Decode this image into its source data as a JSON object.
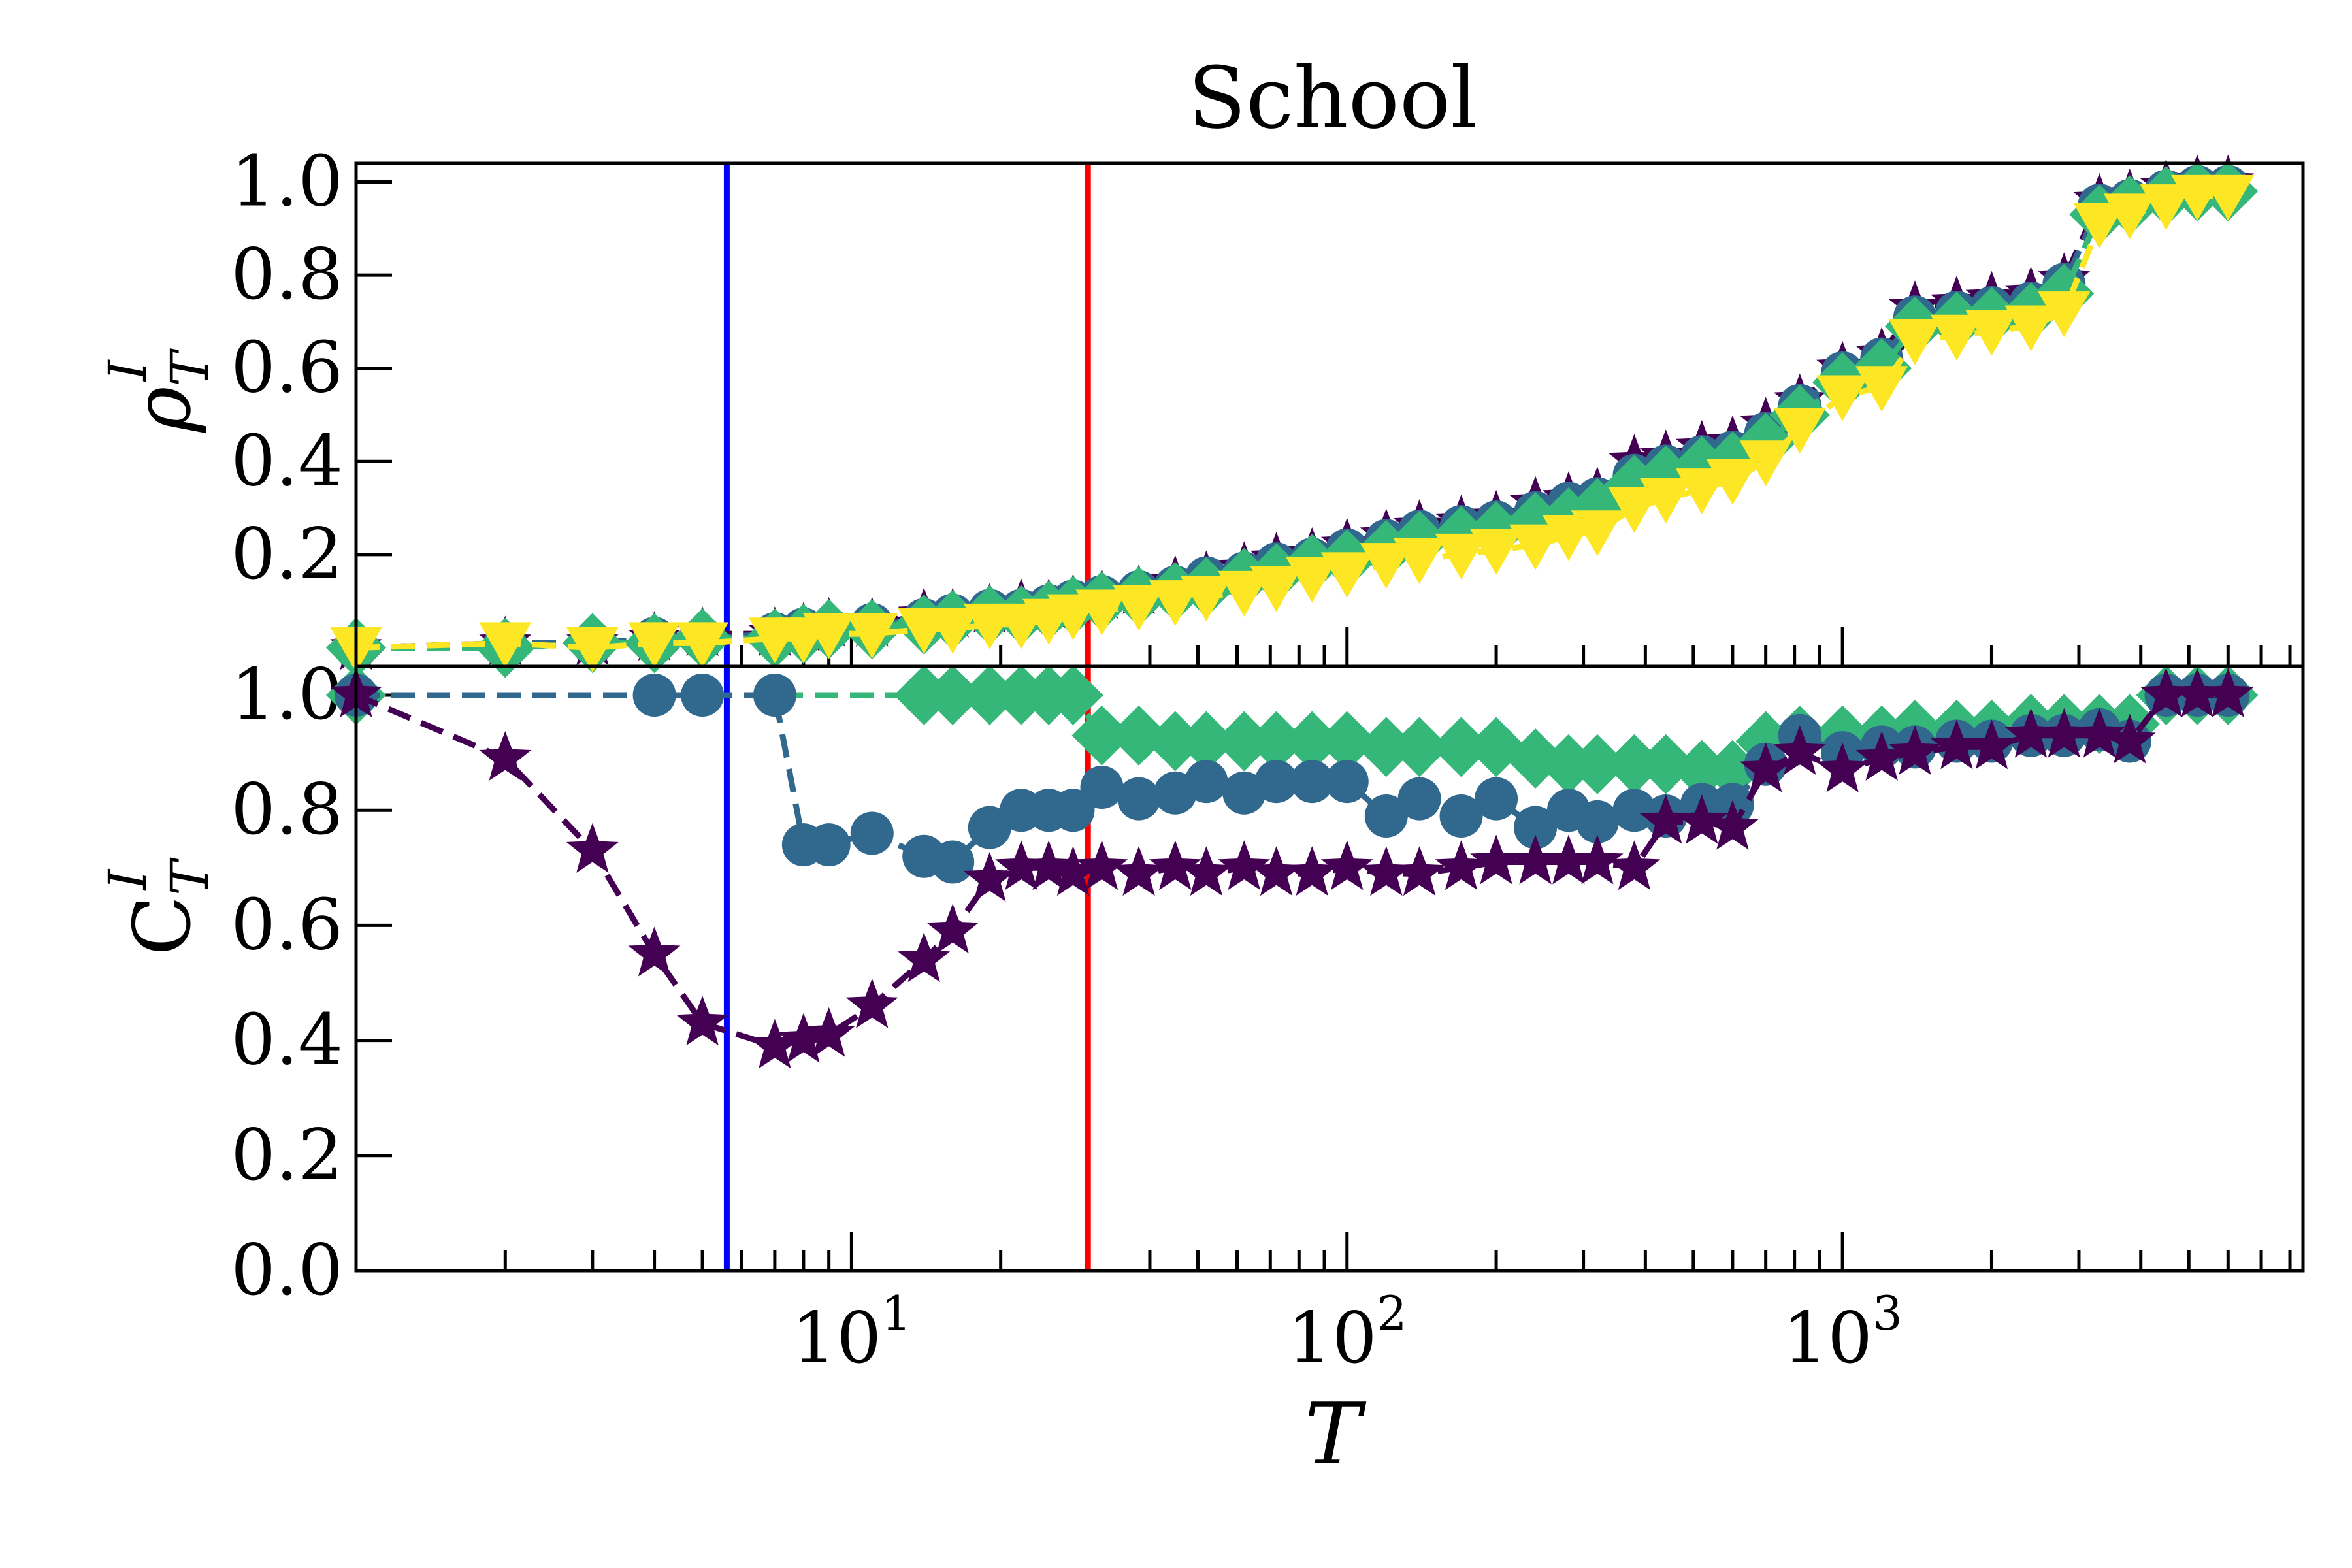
{
  "chart_data": [
    {
      "panel": "top",
      "type": "line",
      "title": "School",
      "xscale": "log",
      "xlim": [
        1,
        8500
      ],
      "ylim": [
        -0.04,
        1.04
      ],
      "ylabel_symbol": "ρ",
      "ylabel_sub": "T",
      "ylabel_sup": "I",
      "yticks": [
        "0.2",
        "0.4",
        "0.6",
        "0.8",
        "1.0"
      ],
      "vlines": [
        {
          "x": 5.6,
          "color": "#0000ff"
        },
        {
          "x": 30,
          "color": "#ff0000"
        }
      ],
      "series": [
        {
          "marker": "star",
          "color": "#440154",
          "x": [
            1,
            2,
            3,
            4,
            5,
            7,
            8,
            9,
            11,
            14,
            16,
            19,
            22,
            25,
            28,
            32,
            38,
            45,
            52,
            62,
            72,
            85,
            100,
            120,
            140,
            170,
            200,
            240,
            280,
            320,
            380,
            440,
            520,
            600,
            700,
            820,
            1000,
            1200,
            1400,
            1700,
            2000,
            2400,
            2800,
            3300,
            3800,
            4500,
            5200,
            6000
          ],
          "y": [
            0.0,
            0.01,
            0.01,
            0.02,
            0.03,
            0.03,
            0.04,
            0.05,
            0.05,
            0.07,
            0.07,
            0.08,
            0.09,
            0.09,
            0.1,
            0.11,
            0.12,
            0.14,
            0.15,
            0.17,
            0.19,
            0.2,
            0.22,
            0.24,
            0.26,
            0.27,
            0.28,
            0.31,
            0.32,
            0.33,
            0.4,
            0.41,
            0.43,
            0.44,
            0.48,
            0.53,
            0.6,
            0.63,
            0.73,
            0.74,
            0.75,
            0.76,
            0.79,
            0.96,
            0.97,
            0.99,
            1.0,
            1.0
          ]
        },
        {
          "marker": "circle",
          "color": "#31688e",
          "x": [
            1,
            2,
            3,
            4,
            5,
            7,
            8,
            9,
            11,
            14,
            16,
            19,
            22,
            25,
            28,
            32,
            38,
            45,
            52,
            62,
            72,
            85,
            100,
            120,
            140,
            170,
            200,
            240,
            280,
            320,
            380,
            440,
            520,
            600,
            700,
            820,
            1000,
            1200,
            1400,
            1700,
            2000,
            2400,
            2800,
            3300,
            3800,
            4500,
            5200,
            6000
          ],
          "y": [
            0.0,
            0.01,
            0.01,
            0.02,
            0.02,
            0.03,
            0.04,
            0.04,
            0.05,
            0.06,
            0.07,
            0.08,
            0.08,
            0.09,
            0.1,
            0.11,
            0.12,
            0.13,
            0.15,
            0.16,
            0.18,
            0.19,
            0.21,
            0.23,
            0.25,
            0.26,
            0.27,
            0.29,
            0.31,
            0.32,
            0.37,
            0.39,
            0.41,
            0.42,
            0.46,
            0.52,
            0.59,
            0.62,
            0.71,
            0.72,
            0.73,
            0.74,
            0.78,
            0.95,
            0.96,
            0.98,
            0.99,
            0.99
          ]
        },
        {
          "marker": "diamond",
          "color": "#35b779",
          "x": [
            1,
            2,
            3,
            4,
            5,
            7,
            8,
            9,
            11,
            14,
            16,
            19,
            22,
            25,
            28,
            32,
            38,
            45,
            52,
            62,
            72,
            85,
            100,
            120,
            140,
            170,
            200,
            240,
            280,
            320,
            380,
            440,
            520,
            600,
            700,
            820,
            1000,
            1200,
            1400,
            1700,
            2000,
            2400,
            2800,
            3300,
            3800,
            4500,
            5200,
            6000
          ],
          "y": [
            0.0,
            0.0,
            0.01,
            0.01,
            0.02,
            0.02,
            0.03,
            0.04,
            0.04,
            0.05,
            0.06,
            0.07,
            0.07,
            0.08,
            0.09,
            0.1,
            0.11,
            0.12,
            0.13,
            0.15,
            0.16,
            0.18,
            0.19,
            0.21,
            0.23,
            0.24,
            0.25,
            0.27,
            0.28,
            0.3,
            0.35,
            0.37,
            0.39,
            0.4,
            0.44,
            0.5,
            0.57,
            0.6,
            0.69,
            0.7,
            0.71,
            0.72,
            0.76,
            0.93,
            0.95,
            0.97,
            0.98,
            0.98
          ]
        },
        {
          "marker": "triangle-down",
          "color": "#fde725",
          "x": [
            1,
            2,
            3,
            4,
            5,
            7,
            8,
            9,
            11,
            14,
            16,
            19,
            22,
            25,
            28,
            32,
            38,
            45,
            52,
            62,
            72,
            85,
            100,
            120,
            140,
            170,
            200,
            240,
            280,
            320,
            380,
            440,
            520,
            600,
            700,
            820,
            1000,
            1200,
            1400,
            1700,
            2000,
            2400,
            2800,
            3300,
            3800,
            4500,
            5200,
            6000
          ],
          "y": [
            0.0,
            0.01,
            0.0,
            0.01,
            0.01,
            0.02,
            0.02,
            0.03,
            0.03,
            0.04,
            0.04,
            0.05,
            0.05,
            0.06,
            0.07,
            0.08,
            0.09,
            0.1,
            0.11,
            0.12,
            0.13,
            0.15,
            0.16,
            0.18,
            0.19,
            0.2,
            0.21,
            0.22,
            0.24,
            0.25,
            0.3,
            0.32,
            0.34,
            0.36,
            0.4,
            0.47,
            0.54,
            0.56,
            0.66,
            0.67,
            0.68,
            0.69,
            0.72,
            0.91,
            0.93,
            0.95,
            0.97,
            0.97
          ]
        }
      ]
    },
    {
      "panel": "bottom",
      "type": "line",
      "xscale": "log",
      "xlim": [
        1,
        8500
      ],
      "ylim": [
        0.0,
        1.05
      ],
      "xlabel": "T",
      "xticks": [
        {
          "base": "10",
          "exp": "1",
          "value": 10
        },
        {
          "base": "10",
          "exp": "2",
          "value": 100
        },
        {
          "base": "10",
          "exp": "3",
          "value": 1000
        }
      ],
      "ylabel_symbol": "C",
      "ylabel_sub": "T",
      "ylabel_sup": "I",
      "yticks": [
        "0.0",
        "0.2",
        "0.4",
        "0.6",
        "0.8",
        "1.0"
      ],
      "vlines": [
        {
          "x": 5.6,
          "color": "#0000ff"
        },
        {
          "x": 30,
          "color": "#ff0000"
        }
      ],
      "series": [
        {
          "marker": "diamond",
          "color": "#35b779",
          "x": [
            1,
            14,
            16,
            19,
            22,
            25,
            28,
            32,
            38,
            45,
            52,
            62,
            72,
            85,
            100,
            120,
            140,
            170,
            200,
            240,
            280,
            320,
            380,
            440,
            520,
            600,
            700,
            820,
            1000,
            1200,
            1400,
            1700,
            2000,
            2400,
            2800,
            3300,
            3800,
            4500,
            5200,
            6000
          ],
          "y": [
            1.0,
            1.0,
            1.0,
            1.0,
            1.0,
            1.0,
            1.0,
            0.93,
            0.93,
            0.92,
            0.92,
            0.92,
            0.92,
            0.92,
            0.92,
            0.91,
            0.91,
            0.91,
            0.91,
            0.89,
            0.88,
            0.88,
            0.88,
            0.88,
            0.87,
            0.87,
            0.92,
            0.93,
            0.93,
            0.93,
            0.94,
            0.94,
            0.94,
            0.95,
            0.95,
            0.95,
            0.95,
            1.0,
            1.0,
            1.0
          ]
        },
        {
          "marker": "circle",
          "color": "#31688e",
          "x": [
            1,
            4,
            5,
            7,
            8,
            9,
            11,
            14,
            16,
            19,
            22,
            25,
            28,
            32,
            38,
            45,
            52,
            62,
            72,
            85,
            100,
            120,
            140,
            170,
            200,
            240,
            280,
            320,
            380,
            440,
            520,
            600,
            700,
            820,
            1000,
            1200,
            1400,
            1700,
            2000,
            2400,
            2800,
            3300,
            3800,
            4500,
            5200,
            6000
          ],
          "y": [
            1.0,
            1.0,
            1.0,
            1.0,
            0.74,
            0.74,
            0.76,
            0.72,
            0.71,
            0.77,
            0.8,
            0.8,
            0.8,
            0.84,
            0.82,
            0.83,
            0.85,
            0.83,
            0.85,
            0.85,
            0.85,
            0.79,
            0.82,
            0.79,
            0.82,
            0.77,
            0.8,
            0.78,
            0.8,
            0.79,
            0.81,
            0.81,
            0.88,
            0.93,
            0.9,
            0.91,
            0.91,
            0.92,
            0.92,
            0.93,
            0.93,
            0.94,
            0.92,
            1.0,
            1.0,
            1.0
          ]
        },
        {
          "marker": "star",
          "color": "#440154",
          "x": [
            1,
            2,
            3,
            4,
            5,
            7,
            8,
            9,
            11,
            14,
            16,
            19,
            22,
            25,
            28,
            32,
            38,
            45,
            52,
            62,
            72,
            85,
            100,
            120,
            140,
            170,
            200,
            240,
            280,
            320,
            380,
            440,
            520,
            600,
            700,
            820,
            1000,
            1200,
            1400,
            1700,
            2000,
            2400,
            2800,
            3300,
            3800,
            4500,
            5200,
            6000
          ],
          "y": [
            1.0,
            0.89,
            0.73,
            0.55,
            0.43,
            0.39,
            0.4,
            0.41,
            0.46,
            0.54,
            0.59,
            0.68,
            0.7,
            0.7,
            0.69,
            0.7,
            0.69,
            0.7,
            0.69,
            0.7,
            0.69,
            0.69,
            0.7,
            0.69,
            0.69,
            0.7,
            0.71,
            0.71,
            0.71,
            0.71,
            0.7,
            0.78,
            0.78,
            0.77,
            0.87,
            0.9,
            0.87,
            0.89,
            0.9,
            0.91,
            0.91,
            0.93,
            0.93,
            0.93,
            0.92,
            1.0,
            1.0,
            1.0
          ]
        }
      ]
    }
  ]
}
